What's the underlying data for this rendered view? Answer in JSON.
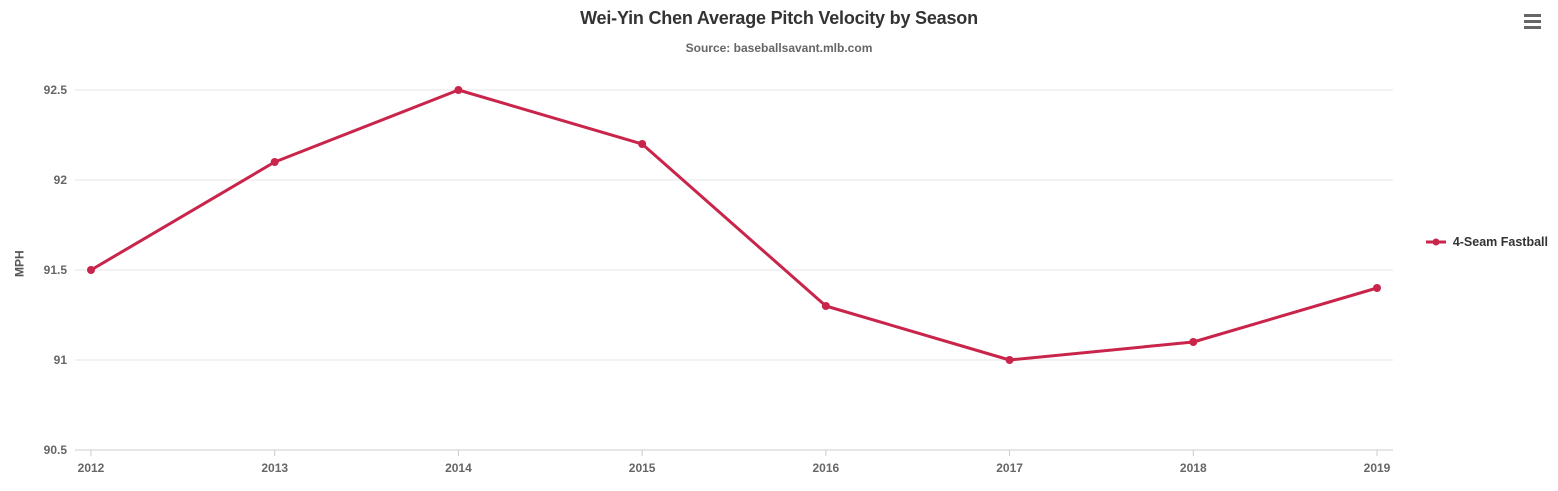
{
  "chart_data": {
    "type": "line",
    "title": "Wei-Yin Chen Average Pitch Velocity by Season",
    "subtitle": "Source: baseballsavant.mlb.com",
    "categories": [
      "2012",
      "2013",
      "2014",
      "2015",
      "2016",
      "2017",
      "2018",
      "2019"
    ],
    "series": [
      {
        "name": "4-Seam Fastball",
        "color": "#c9254b",
        "values": [
          91.5,
          92.1,
          92.5,
          92.2,
          91.3,
          91.0,
          91.1,
          91.4
        ]
      }
    ],
    "xlabel": "",
    "ylabel": "MPH",
    "ylim": [
      90.5,
      92.5
    ],
    "yticks": [
      90.5,
      91,
      91.5,
      92,
      92.5
    ],
    "ytick_labels": [
      "90.5",
      "91",
      "91.5",
      "92",
      "92.5"
    ],
    "grid": true,
    "legend_position": "right"
  },
  "colors": {
    "title_text": "#333333",
    "subtitle_text": "#666666",
    "axis_label_text": "#666666",
    "gridline": "#e6e6e6",
    "axis_line": "#cccccc",
    "series_line": "#c9254b",
    "menu_icon": "#666666"
  },
  "context_menu": {
    "icon": "hamburger-icon"
  }
}
